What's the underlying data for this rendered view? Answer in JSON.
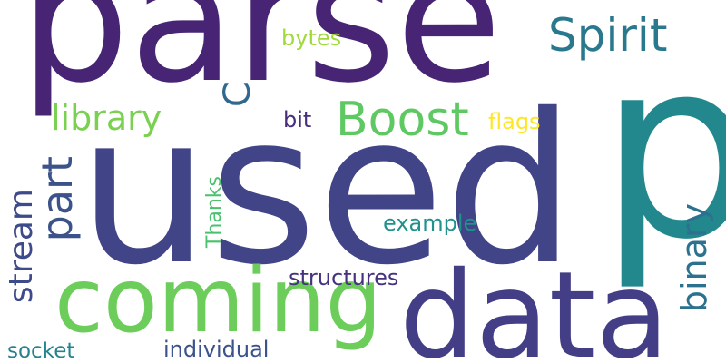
{
  "words": {
    "parse": {
      "text": "parse",
      "color": "#482475"
    },
    "used": {
      "text": "used",
      "color": "#414487"
    },
    "p": {
      "text": "p",
      "color": "#23888e"
    },
    "data": {
      "text": "data",
      "color": "#433e85"
    },
    "coming": {
      "text": "coming",
      "color": "#6ccd5a"
    },
    "boost": {
      "text": "Boost",
      "color": "#5ec962"
    },
    "spirit": {
      "text": "Spirit",
      "color": "#2a788e"
    },
    "library": {
      "text": "library",
      "color": "#7ad151"
    },
    "part": {
      "text": "part",
      "color": "#3b528b"
    },
    "stream": {
      "text": "stream",
      "color": "#3e4a89"
    },
    "binary": {
      "text": "binary",
      "color": "#2c728e"
    },
    "thanks": {
      "text": "Thanks",
      "color": "#4ac16d"
    },
    "c": {
      "text": "C",
      "color": "#31688e"
    },
    "bytes": {
      "text": "bytes",
      "color": "#a0da39"
    },
    "bit": {
      "text": "bit",
      "color": "#472d7b"
    },
    "flags": {
      "text": "flags",
      "color": "#fde725"
    },
    "example": {
      "text": "example",
      "color": "#21918c"
    },
    "structures": {
      "text": "structures",
      "color": "#46327e"
    },
    "individual": {
      "text": "individual",
      "color": "#3b528b"
    },
    "socket": {
      "text": "socket",
      "color": "#26828e"
    }
  }
}
